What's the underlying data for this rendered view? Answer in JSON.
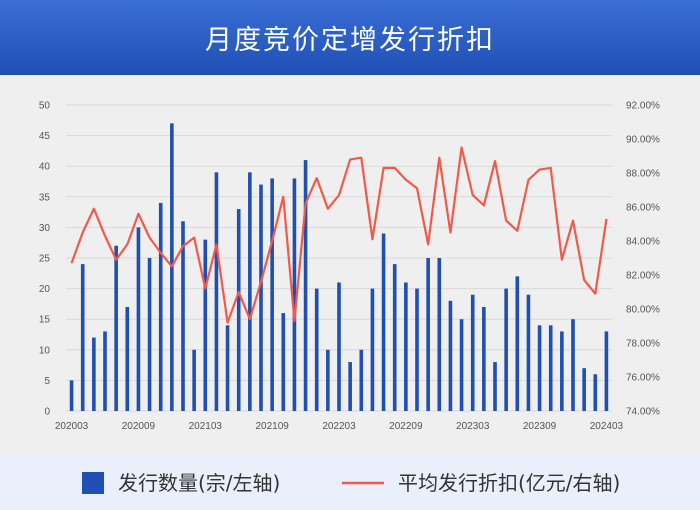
{
  "header": {
    "title": "月度竞价定增发行折扣"
  },
  "colors": {
    "bar": "#1f4fb3",
    "line": "#f05a4a",
    "grid": "#d8d8d8",
    "header": "#2a5cc4",
    "legend_bg": "#e9f0fb"
  },
  "chart_data": {
    "type": "bar",
    "title": "",
    "x_tick_labels": [
      "202003",
      "202009",
      "202103",
      "202109",
      "202203",
      "202209",
      "202303",
      "202309",
      "202403"
    ],
    "categories": [
      "202003",
      "202004",
      "202005",
      "202006",
      "202007",
      "202008",
      "202009",
      "202010",
      "202011",
      "202012",
      "202101",
      "202102",
      "202103",
      "202104",
      "202105",
      "202106",
      "202107",
      "202108",
      "202109",
      "202110",
      "202111",
      "202112",
      "202201",
      "202202",
      "202203",
      "202204",
      "202205",
      "202206",
      "202207",
      "202208",
      "202209",
      "202210",
      "202211",
      "202212",
      "202301",
      "202302",
      "202303",
      "202304",
      "202305",
      "202306",
      "202307",
      "202308",
      "202309",
      "202310",
      "202311",
      "202312",
      "202401",
      "202402",
      "202403"
    ],
    "left_axis": {
      "ylim": [
        0,
        50
      ],
      "ticks": [
        0,
        5,
        10,
        15,
        20,
        25,
        30,
        35,
        40,
        45,
        50
      ]
    },
    "right_axis": {
      "ylim": [
        74,
        92
      ],
      "ticks": [
        "74.00%",
        "76.00%",
        "78.00%",
        "80.00%",
        "82.00%",
        "84.00%",
        "86.00%",
        "88.00%",
        "90.00%",
        "92.00%"
      ]
    },
    "series": [
      {
        "name": "发行数量(宗/左轴)",
        "type": "bar",
        "axis": "left",
        "values": [
          5,
          24,
          12,
          13,
          27,
          17,
          30,
          25,
          34,
          47,
          31,
          10,
          28,
          39,
          14,
          33,
          39,
          37,
          38,
          16,
          38,
          41,
          20,
          10,
          21,
          8,
          10,
          20,
          29,
          24,
          21,
          20,
          25,
          25,
          18,
          15,
          19,
          17,
          8,
          20,
          22,
          19,
          14,
          14,
          13,
          15,
          7,
          6,
          13
        ]
      },
      {
        "name": "平均发行折扣(亿元/右轴)",
        "type": "line",
        "axis": "right",
        "values": [
          82.7,
          84.5,
          85.9,
          84.3,
          82.9,
          83.8,
          85.6,
          84.2,
          83.3,
          82.5,
          83.7,
          84.2,
          81.2,
          83.8,
          79.2,
          81.0,
          79.4,
          81.6,
          84.0,
          86.6,
          79.3,
          86.2,
          87.7,
          85.9,
          86.7,
          88.8,
          88.9,
          84.1,
          88.3,
          88.3,
          87.6,
          87.1,
          83.8,
          88.9,
          84.5,
          89.5,
          86.7,
          86.1,
          88.7,
          85.2,
          84.6,
          87.6,
          88.2,
          88.3,
          82.9,
          85.2,
          81.7,
          80.9,
          85.3
        ]
      }
    ],
    "grid": true,
    "legend_position": "bottom"
  }
}
